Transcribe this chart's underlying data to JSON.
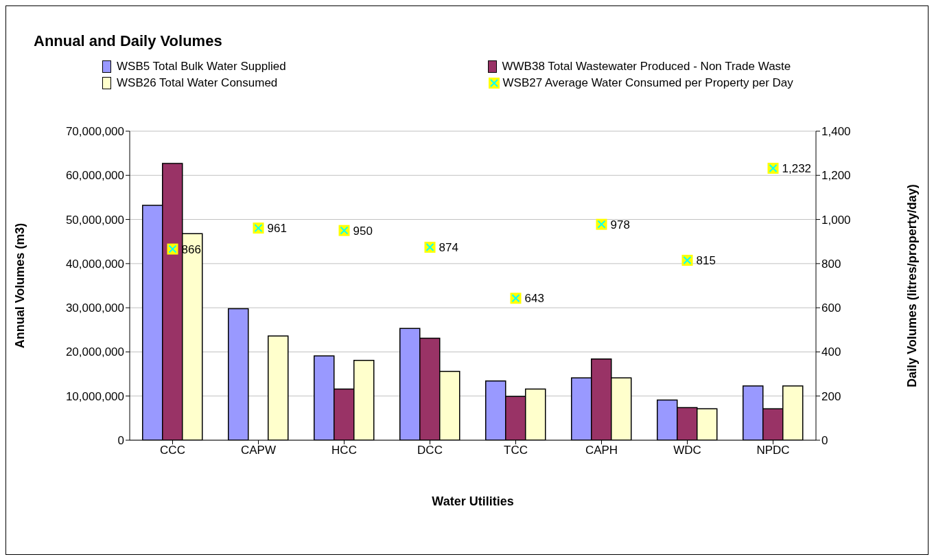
{
  "chart_data": {
    "type": "bar",
    "title": "Annual and Daily Volumes",
    "xlabel": "Water Utilities",
    "ylabel": "Annual Volumes (m3)",
    "y2label": "Daily Volumes (litres/property/day)",
    "categories": [
      "CCC",
      "CAPW",
      "HCC",
      "DCC",
      "TCC",
      "CAPH",
      "WDC",
      "NPDC"
    ],
    "series": [
      {
        "name": "WSB5 Total Bulk Water Supplied",
        "color": "#9999ff",
        "values": [
          53200000,
          29800000,
          19100000,
          25300000,
          13400000,
          14100000,
          9100000,
          12300000
        ]
      },
      {
        "name": "WWB38 Total Wastewater Produced - Non Trade Waste",
        "color": "#993366",
        "values": [
          62700000,
          null,
          11600000,
          23100000,
          9900000,
          18400000,
          7400000,
          7100000
        ]
      },
      {
        "name": "WSB26 Total Water Consumed",
        "color": "#ffffcc",
        "values": [
          46800000,
          23600000,
          18100000,
          15600000,
          11600000,
          14100000,
          7100000,
          12300000
        ]
      },
      {
        "name": "WSB27 Average Water Consumed per Property per Day",
        "type": "scatter",
        "axis": "y2",
        "color": "#00ffff",
        "marker": "cross",
        "values": [
          866,
          961,
          950,
          874,
          643,
          978,
          815,
          1232
        ],
        "value_labels": [
          "866",
          "961",
          "950",
          "874",
          "643",
          "978",
          "815",
          "1,232"
        ]
      }
    ],
    "ylim": [
      0,
      70000000
    ],
    "yticks": [
      0,
      {
        "value": 10000000,
        "label": "10,000,000"
      },
      {
        "value": 20000000,
        "label": "20,000,000"
      },
      {
        "value": 30000000,
        "label": "30,000,000"
      },
      {
        "value": 40000000,
        "label": "40,000,000"
      },
      {
        "value": 50000000,
        "label": "50,000,000"
      },
      {
        "value": 60000000,
        "label": "60,000,000"
      },
      {
        "value": 70000000,
        "label": "70,000,000"
      }
    ],
    "y2lim": [
      0,
      1400
    ],
    "y2ticks": [
      0,
      200,
      400,
      600,
      800,
      {
        "value": 1000,
        "label": "1,000"
      },
      {
        "value": 1200,
        "label": "1,200"
      },
      {
        "value": 1400,
        "label": "1,400"
      }
    ],
    "grid": "y",
    "legend": "top"
  }
}
